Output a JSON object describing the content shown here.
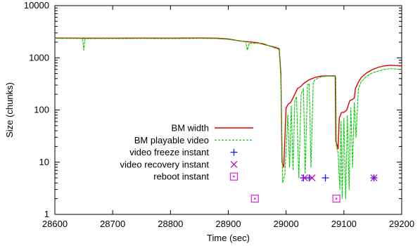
{
  "chart_data": {
    "type": "line",
    "xlabel": "Time (sec)",
    "ylabel": "Size (chunks)",
    "xlim": [
      28600,
      29200
    ],
    "ylim": [
      1,
      10000
    ],
    "yscale": "log",
    "x_ticks": [
      28600,
      28700,
      28800,
      28900,
      29000,
      29100,
      29200
    ],
    "y_ticks": [
      1,
      10,
      100,
      1000,
      10000
    ],
    "y_tick_labels": [
      "1",
      "10",
      "100",
      "1000",
      "10000"
    ],
    "grid": false,
    "legend_position": "center-left",
    "series": [
      {
        "name": "BM width",
        "style": "line",
        "color": "#e00000",
        "points": [
          [
            28600,
            2400
          ],
          [
            28650,
            2380
          ],
          [
            28700,
            2380
          ],
          [
            28750,
            2390
          ],
          [
            28800,
            2380
          ],
          [
            28850,
            2400
          ],
          [
            28880,
            2380
          ],
          [
            28900,
            2300
          ],
          [
            28920,
            2100
          ],
          [
            28950,
            1950
          ],
          [
            28980,
            1600
          ],
          [
            28988,
            1500
          ],
          [
            28991,
            500
          ],
          [
            28993,
            10
          ],
          [
            28996,
            8
          ],
          [
            29000,
            110
          ],
          [
            29004,
            130
          ],
          [
            29008,
            140
          ],
          [
            29012,
            170
          ],
          [
            29016,
            210
          ],
          [
            29020,
            260
          ],
          [
            29025,
            280
          ],
          [
            29030,
            320
          ],
          [
            29035,
            350
          ],
          [
            29040,
            380
          ],
          [
            29045,
            400
          ],
          [
            29050,
            420
          ],
          [
            29060,
            445
          ],
          [
            29070,
            450
          ],
          [
            29080,
            450
          ],
          [
            29085,
            450
          ],
          [
            29086,
            25
          ],
          [
            29088,
            22
          ],
          [
            29090,
            18
          ],
          [
            29092,
            70
          ],
          [
            29094,
            80
          ],
          [
            29096,
            90
          ],
          [
            29100,
            90
          ],
          [
            29105,
            100
          ],
          [
            29110,
            150
          ],
          [
            29115,
            160
          ],
          [
            29118,
            170
          ],
          [
            29120,
            260
          ],
          [
            29125,
            340
          ],
          [
            29130,
            420
          ],
          [
            29135,
            470
          ],
          [
            29140,
            520
          ],
          [
            29150,
            600
          ],
          [
            29160,
            660
          ],
          [
            29170,
            700
          ],
          [
            29180,
            720
          ],
          [
            29190,
            710
          ],
          [
            29200,
            700
          ]
        ]
      },
      {
        "name": "BM playable video",
        "style": "dashed",
        "color": "#00cc00",
        "points": [
          [
            28600,
            2350
          ],
          [
            28648,
            2340
          ],
          [
            28650,
            1400
          ],
          [
            28652,
            2330
          ],
          [
            28700,
            2330
          ],
          [
            28750,
            2340
          ],
          [
            28800,
            2330
          ],
          [
            28850,
            2350
          ],
          [
            28880,
            2330
          ],
          [
            28900,
            2250
          ],
          [
            28930,
            2050
          ],
          [
            28933,
            1400
          ],
          [
            28936,
            1900
          ],
          [
            28960,
            1900
          ],
          [
            28980,
            1550
          ],
          [
            28988,
            1450
          ],
          [
            28991,
            400
          ],
          [
            28994,
            4
          ],
          [
            28998,
            6
          ],
          [
            29003,
            80
          ],
          [
            29006,
            8
          ],
          [
            29009,
            120
          ],
          [
            29012,
            7
          ],
          [
            29015,
            150
          ],
          [
            29018,
            180
          ],
          [
            29022,
            5
          ],
          [
            29026,
            200
          ],
          [
            29030,
            260
          ],
          [
            29033,
            6
          ],
          [
            29037,
            300
          ],
          [
            29040,
            320
          ],
          [
            29043,
            8
          ],
          [
            29047,
            340
          ],
          [
            29050,
            380
          ],
          [
            29060,
            430
          ],
          [
            29070,
            445
          ],
          [
            29080,
            445
          ],
          [
            29086,
            440
          ],
          [
            29087,
            20
          ],
          [
            29090,
            15
          ],
          [
            29093,
            3
          ],
          [
            29095,
            60
          ],
          [
            29097,
            2
          ],
          [
            29100,
            70
          ],
          [
            29103,
            2
          ],
          [
            29106,
            80
          ],
          [
            29109,
            3
          ],
          [
            29112,
            110
          ],
          [
            29115,
            8
          ],
          [
            29118,
            140
          ],
          [
            29121,
            30
          ],
          [
            29125,
            250
          ],
          [
            29130,
            350
          ],
          [
            29140,
            450
          ],
          [
            29150,
            520
          ],
          [
            29160,
            560
          ],
          [
            29170,
            600
          ],
          [
            29180,
            620
          ],
          [
            29190,
            610
          ],
          [
            29200,
            600
          ]
        ]
      },
      {
        "name": "video freeze instant",
        "style": "marker-plus",
        "color": "#1a1aff",
        "points": [
          [
            29030,
            5
          ],
          [
            29040,
            5
          ],
          [
            29068,
            5
          ],
          [
            29152,
            5
          ]
        ]
      },
      {
        "name": "video recovery instant",
        "style": "marker-x",
        "color": "#cc00cc",
        "points": [
          [
            29032,
            5
          ],
          [
            29045,
            5
          ],
          [
            29152,
            5
          ]
        ]
      },
      {
        "name": "reboot instant",
        "style": "marker-square",
        "color": "#dd22dd",
        "points": [
          [
            28946,
            2
          ],
          [
            29087,
            2
          ]
        ]
      }
    ]
  }
}
